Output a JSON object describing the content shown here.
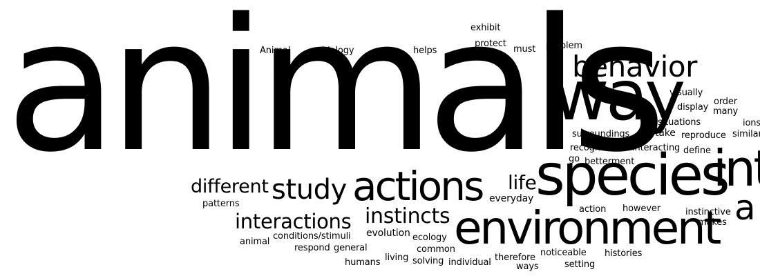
{
  "cloud": {
    "words": [
      "animals",
      "way",
      "behavior",
      "species",
      "environment",
      "actions",
      "study",
      "interactions",
      "instincts",
      "different",
      "life",
      "everyday",
      "patterns",
      "conditions/stimuli",
      "evolution",
      "animal",
      "respond",
      "general",
      "ecology",
      "common",
      "humans",
      "living",
      "solving",
      "individual",
      "therefore",
      "ways",
      "noticeable",
      "setting",
      "histories",
      "action",
      "however",
      "instinctive",
      "makes",
      "surroundings",
      "take",
      "situations",
      "reproduce",
      "recognizable",
      "interacting",
      "define",
      "go",
      "betterment",
      "visually",
      "display",
      "order",
      "many",
      "Animal",
      "biology",
      "helps",
      "protect",
      "must",
      "problem",
      "exhibit",
      "similar",
      "int",
      "a",
      "ions"
    ]
  }
}
